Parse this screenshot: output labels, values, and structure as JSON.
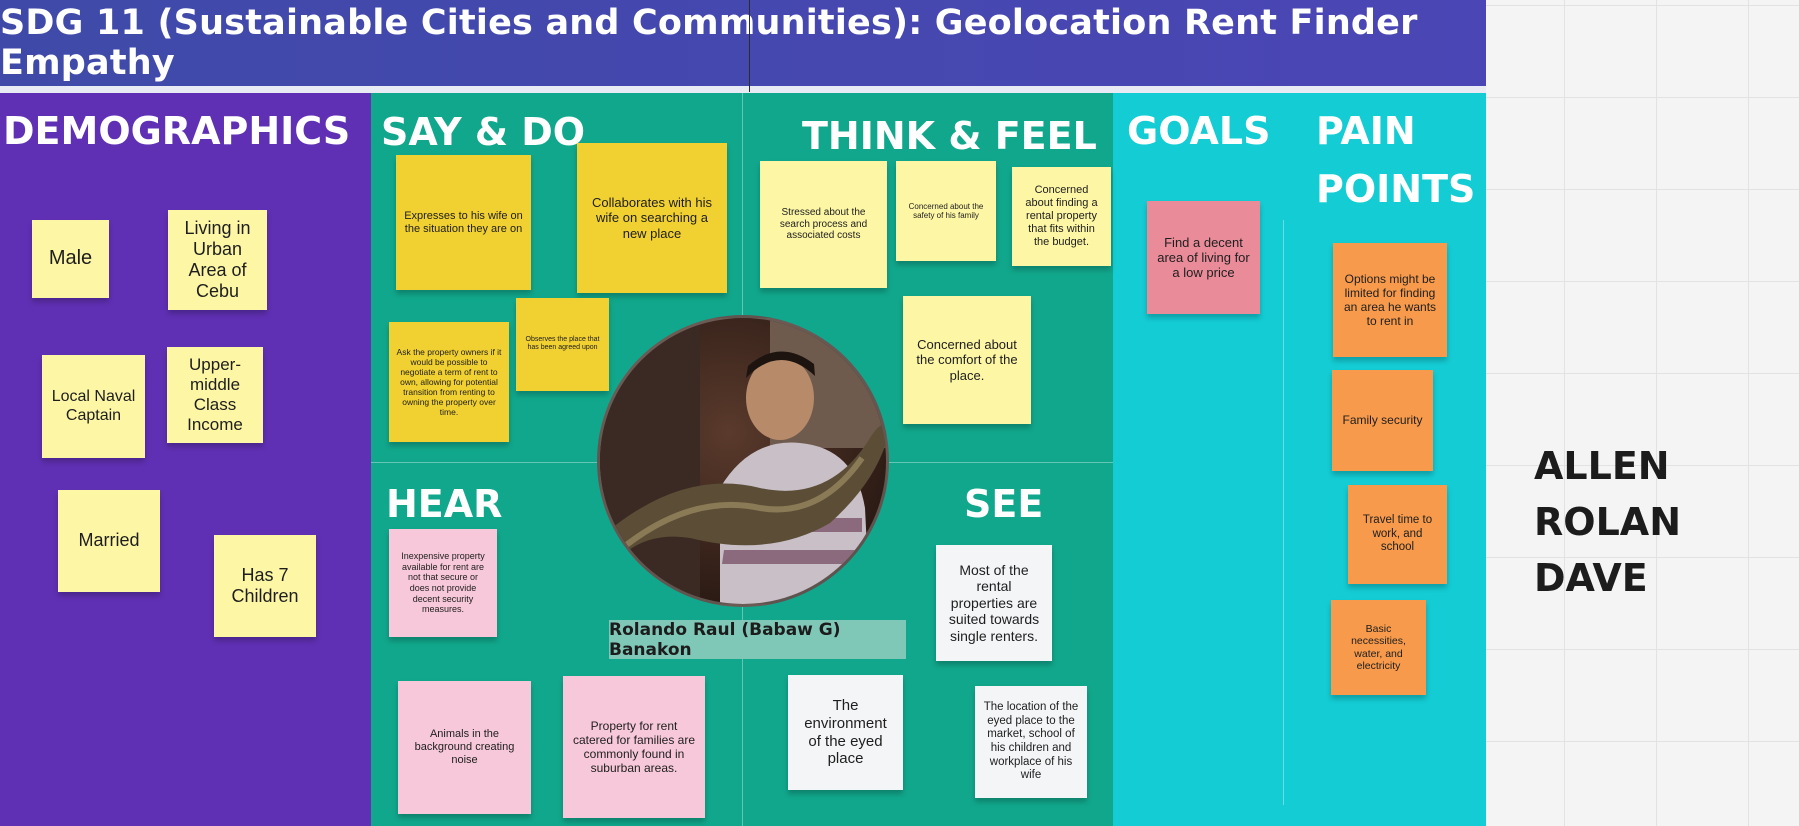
{
  "title": "SDG 11 (Sustainable Cities and Communities): Geolocation Rent Finder Empathy",
  "colors": {
    "banner": "#4347ad",
    "demographics": "#6030b4",
    "say_do_think_hear_see": "#11a78c",
    "goals_pain": "#14ccd4"
  },
  "headings": {
    "demographics": "DEMOGRAPHICS",
    "say_do": "SAY & DO",
    "think_feel": "THINK & FEEL",
    "goals": "GOALS",
    "pain_line1": "PAIN",
    "pain_line2": "POINTS",
    "hear": "HEAR",
    "see": "SEE"
  },
  "demographics": {
    "male": "Male",
    "living": "Living in Urban Area of Cebu",
    "captain": "Local Naval Captain",
    "income": "Upper-middle Class Income",
    "married": "Married",
    "children": "Has 7 Children"
  },
  "say_do": {
    "expresses": "Expresses to his wife on the situation they are on",
    "collaborates": "Collaborates with his wife on searching a new place",
    "ask_owners": "Ask the property owners if it would be possible to negotiate a term of rent to own, allowing for potential transition from renting to owning the property over time.",
    "observes": "Observes the place that has been agreed upon"
  },
  "think_feel": {
    "stressed": "Stressed about the search process and associated costs",
    "safety": "Concerned about the safety of his family",
    "budget": "Concerned about finding a rental property that fits within the budget.",
    "comfort": "Concerned about the comfort of the place."
  },
  "hear": {
    "inexpensive": "Inexpensive property available for rent are not that secure or does not provide decent security measures.",
    "animals": "Animals in the background creating noise",
    "families": "Property for rent catered for families are commonly found in suburban areas."
  },
  "see": {
    "single": "Most of the rental properties are suited towards single renters.",
    "environment": "The environment of the eyed place",
    "location": "The location of the eyed place to the market, school of his children and workplace of his wife"
  },
  "goals": {
    "decent_area": "Find a decent area of living for a low price"
  },
  "pain_points": {
    "options": "Options might be limited for finding an area he wants to rent in",
    "security": "Family security",
    "travel": "Travel time to work, and school",
    "necessities": "Basic necessities, water, and electricity"
  },
  "persona": {
    "name": "Rolando Raul (Babaw G) Banakon"
  },
  "author": {
    "line1": "ALLEN",
    "line2": "ROLAN DAVE"
  }
}
